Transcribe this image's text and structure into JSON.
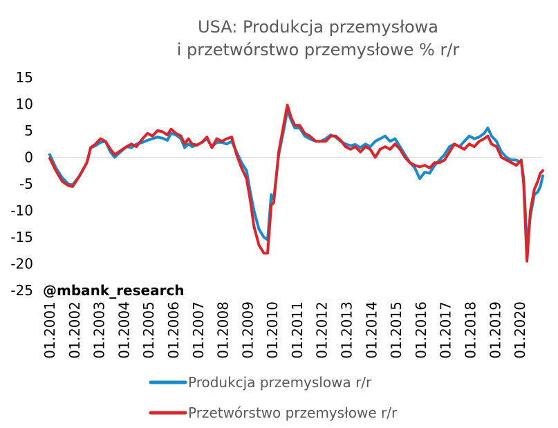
{
  "chart_data": {
    "type": "line",
    "title": [
      "USA: Produkcja przemysłowa",
      "i przetwórstwo przemysłowe % r/r"
    ],
    "watermark": "@mbank_research",
    "x_ticks": [
      "01.2001",
      "01.2002",
      "01.2003",
      "01.2004",
      "01.2005",
      "01.2006",
      "01.2007",
      "01.2008",
      "01.2009",
      "01.2010",
      "01.2011",
      "01.2012",
      "01.2013",
      "01.2014",
      "01.2015",
      "01.2016",
      "01.2017",
      "01.2018",
      "01.2019",
      "01.2020"
    ],
    "y_ticks": [
      15,
      10,
      5,
      0,
      -5,
      -10,
      -15,
      -20,
      -25
    ],
    "ylim": [
      -25,
      15
    ],
    "xlim": [
      2001.0,
      2020.92
    ],
    "grid": false,
    "legend_position": "bottom",
    "series": [
      {
        "name": "Produkcja przemyslowa r/r",
        "color": "#1B8AC9",
        "points": [
          [
            2001.0,
            0.5
          ],
          [
            2001.25,
            -2.0
          ],
          [
            2001.5,
            -3.8
          ],
          [
            2001.75,
            -5.0
          ],
          [
            2001.92,
            -5.2
          ],
          [
            2002.2,
            -3.5
          ],
          [
            2002.5,
            -1.0
          ],
          [
            2002.65,
            1.8
          ],
          [
            2002.85,
            2.2
          ],
          [
            2003.05,
            2.8
          ],
          [
            2003.25,
            3.0
          ],
          [
            2003.45,
            1.0
          ],
          [
            2003.62,
            0.0
          ],
          [
            2003.85,
            1.0
          ],
          [
            2004.1,
            2.0
          ],
          [
            2004.3,
            1.8
          ],
          [
            2004.5,
            2.5
          ],
          [
            2004.75,
            2.8
          ],
          [
            2004.95,
            3.2
          ],
          [
            2005.15,
            3.5
          ],
          [
            2005.35,
            3.8
          ],
          [
            2005.55,
            3.6
          ],
          [
            2005.75,
            3.2
          ],
          [
            2005.9,
            4.5
          ],
          [
            2006.1,
            4.2
          ],
          [
            2006.3,
            3.5
          ],
          [
            2006.45,
            1.8
          ],
          [
            2006.6,
            2.5
          ],
          [
            2006.75,
            2.0
          ],
          [
            2006.95,
            2.3
          ],
          [
            2007.15,
            2.8
          ],
          [
            2007.35,
            3.5
          ],
          [
            2007.55,
            2.0
          ],
          [
            2007.75,
            2.8
          ],
          [
            2007.95,
            2.8
          ],
          [
            2008.15,
            2.5
          ],
          [
            2008.35,
            3.0
          ],
          [
            2008.55,
            1.0
          ],
          [
            2008.75,
            -1.0
          ],
          [
            2008.95,
            -2.5
          ],
          [
            2009.1,
            -6.5
          ],
          [
            2009.25,
            -10.0
          ],
          [
            2009.45,
            -13.5
          ],
          [
            2009.65,
            -15.0
          ],
          [
            2009.8,
            -15.5
          ],
          [
            2009.95,
            -7.0
          ],
          [
            2010.05,
            -8.0
          ],
          [
            2010.25,
            0.5
          ],
          [
            2010.45,
            5.0
          ],
          [
            2010.6,
            8.8
          ],
          [
            2010.75,
            7.0
          ],
          [
            2010.9,
            5.5
          ],
          [
            2011.1,
            5.5
          ],
          [
            2011.3,
            4.0
          ],
          [
            2011.5,
            3.5
          ],
          [
            2011.75,
            3.0
          ],
          [
            2011.95,
            3.0
          ],
          [
            2012.15,
            3.5
          ],
          [
            2012.35,
            4.2
          ],
          [
            2012.55,
            3.8
          ],
          [
            2012.75,
            3.0
          ],
          [
            2012.95,
            2.5
          ],
          [
            2013.15,
            2.2
          ],
          [
            2013.35,
            2.4
          ],
          [
            2013.55,
            1.8
          ],
          [
            2013.75,
            2.5
          ],
          [
            2013.95,
            2.0
          ],
          [
            2014.15,
            3.0
          ],
          [
            2014.35,
            3.5
          ],
          [
            2014.55,
            4.0
          ],
          [
            2014.75,
            3.0
          ],
          [
            2014.95,
            3.5
          ],
          [
            2015.15,
            2.0
          ],
          [
            2015.35,
            0.5
          ],
          [
            2015.55,
            -1.0
          ],
          [
            2015.75,
            -2.0
          ],
          [
            2015.95,
            -4.0
          ],
          [
            2016.15,
            -2.8
          ],
          [
            2016.35,
            -3.0
          ],
          [
            2016.55,
            -1.5
          ],
          [
            2016.75,
            -0.5
          ],
          [
            2016.95,
            0.5
          ],
          [
            2017.15,
            2.0
          ],
          [
            2017.35,
            2.5
          ],
          [
            2017.55,
            2.0
          ],
          [
            2017.75,
            3.0
          ],
          [
            2017.95,
            4.0
          ],
          [
            2018.15,
            3.5
          ],
          [
            2018.35,
            3.8
          ],
          [
            2018.55,
            4.5
          ],
          [
            2018.7,
            5.5
          ],
          [
            2018.85,
            4.0
          ],
          [
            2019.05,
            3.0
          ],
          [
            2019.25,
            1.0
          ],
          [
            2019.45,
            0.0
          ],
          [
            2019.65,
            -0.5
          ],
          [
            2019.85,
            -0.5
          ],
          [
            2020.05,
            -1.0
          ],
          [
            2020.15,
            -4.0
          ],
          [
            2020.28,
            -16.5
          ],
          [
            2020.42,
            -11.0
          ],
          [
            2020.58,
            -7.0
          ],
          [
            2020.72,
            -6.5
          ],
          [
            2020.82,
            -5.5
          ],
          [
            2020.92,
            -3.5
          ]
        ]
      },
      {
        "name": "Przetwórstwo przemysłowe r/r",
        "color": "#D9262C",
        "points": [
          [
            2001.0,
            -0.2
          ],
          [
            2001.25,
            -2.5
          ],
          [
            2001.5,
            -4.5
          ],
          [
            2001.75,
            -5.3
          ],
          [
            2001.92,
            -5.5
          ],
          [
            2002.2,
            -3.5
          ],
          [
            2002.5,
            -1.0
          ],
          [
            2002.65,
            1.8
          ],
          [
            2002.85,
            2.5
          ],
          [
            2003.05,
            3.5
          ],
          [
            2003.25,
            3.0
          ],
          [
            2003.45,
            1.5
          ],
          [
            2003.62,
            0.5
          ],
          [
            2003.85,
            1.2
          ],
          [
            2004.1,
            2.0
          ],
          [
            2004.3,
            2.5
          ],
          [
            2004.5,
            2.0
          ],
          [
            2004.75,
            3.5
          ],
          [
            2004.95,
            4.5
          ],
          [
            2005.15,
            4.0
          ],
          [
            2005.35,
            5.0
          ],
          [
            2005.55,
            4.8
          ],
          [
            2005.75,
            4.2
          ],
          [
            2005.9,
            5.3
          ],
          [
            2006.1,
            4.5
          ],
          [
            2006.3,
            4.0
          ],
          [
            2006.45,
            2.5
          ],
          [
            2006.6,
            3.5
          ],
          [
            2006.75,
            2.5
          ],
          [
            2006.95,
            2.3
          ],
          [
            2007.15,
            2.8
          ],
          [
            2007.35,
            3.8
          ],
          [
            2007.55,
            1.8
          ],
          [
            2007.75,
            3.5
          ],
          [
            2007.95,
            3.0
          ],
          [
            2008.15,
            3.5
          ],
          [
            2008.35,
            3.8
          ],
          [
            2008.55,
            0.5
          ],
          [
            2008.75,
            -2.0
          ],
          [
            2008.95,
            -4.0
          ],
          [
            2009.1,
            -8.0
          ],
          [
            2009.25,
            -13.0
          ],
          [
            2009.45,
            -16.5
          ],
          [
            2009.65,
            -18.0
          ],
          [
            2009.8,
            -18.0
          ],
          [
            2009.95,
            -9.0
          ],
          [
            2010.05,
            -8.5
          ],
          [
            2010.25,
            1.0
          ],
          [
            2010.45,
            6.0
          ],
          [
            2010.6,
            9.8
          ],
          [
            2010.75,
            7.5
          ],
          [
            2010.9,
            6.0
          ],
          [
            2011.1,
            6.0
          ],
          [
            2011.3,
            4.5
          ],
          [
            2011.5,
            4.0
          ],
          [
            2011.75,
            3.0
          ],
          [
            2011.95,
            3.0
          ],
          [
            2012.15,
            3.0
          ],
          [
            2012.35,
            4.0
          ],
          [
            2012.55,
            4.0
          ],
          [
            2012.75,
            3.2
          ],
          [
            2012.95,
            2.0
          ],
          [
            2013.15,
            1.5
          ],
          [
            2013.35,
            2.0
          ],
          [
            2013.55,
            1.0
          ],
          [
            2013.75,
            2.0
          ],
          [
            2013.95,
            1.5
          ],
          [
            2014.15,
            0.0
          ],
          [
            2014.35,
            1.5
          ],
          [
            2014.55,
            2.0
          ],
          [
            2014.75,
            1.5
          ],
          [
            2014.95,
            2.5
          ],
          [
            2015.15,
            1.5
          ],
          [
            2015.35,
            0.0
          ],
          [
            2015.55,
            -1.0
          ],
          [
            2015.75,
            -1.5
          ],
          [
            2015.95,
            -1.8
          ],
          [
            2016.15,
            -1.5
          ],
          [
            2016.35,
            -2.0
          ],
          [
            2016.55,
            -1.0
          ],
          [
            2016.75,
            -1.0
          ],
          [
            2016.95,
            -0.5
          ],
          [
            2017.15,
            1.0
          ],
          [
            2017.35,
            2.5
          ],
          [
            2017.55,
            2.0
          ],
          [
            2017.75,
            1.5
          ],
          [
            2017.95,
            2.5
          ],
          [
            2018.15,
            2.0
          ],
          [
            2018.35,
            3.0
          ],
          [
            2018.55,
            3.5
          ],
          [
            2018.7,
            4.0
          ],
          [
            2018.85,
            2.5
          ],
          [
            2019.05,
            2.0
          ],
          [
            2019.25,
            0.0
          ],
          [
            2019.45,
            -0.5
          ],
          [
            2019.65,
            -1.0
          ],
          [
            2019.85,
            -1.5
          ],
          [
            2020.05,
            -0.5
          ],
          [
            2020.15,
            -5.0
          ],
          [
            2020.28,
            -19.5
          ],
          [
            2020.42,
            -10.0
          ],
          [
            2020.58,
            -6.0
          ],
          [
            2020.72,
            -4.5
          ],
          [
            2020.82,
            -3.0
          ],
          [
            2020.92,
            -2.5
          ]
        ]
      }
    ]
  }
}
